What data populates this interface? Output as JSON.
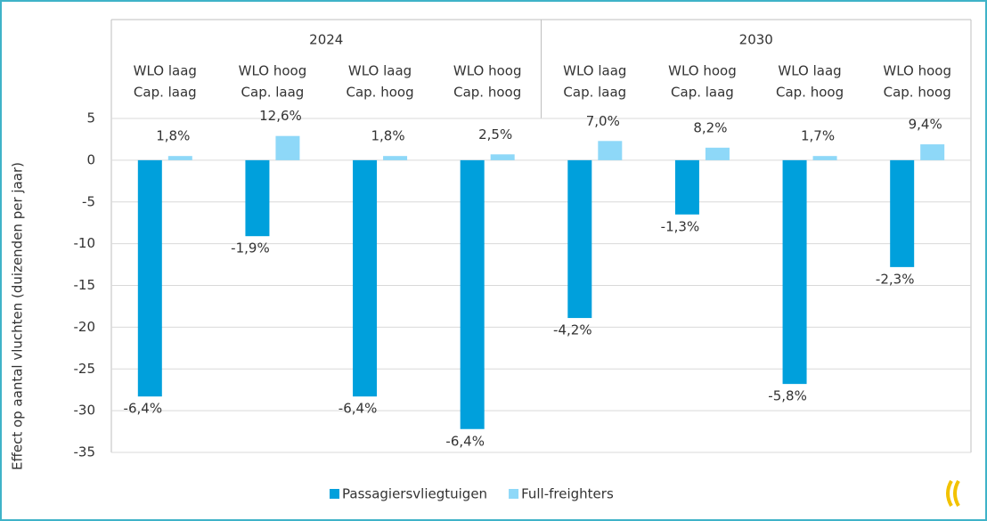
{
  "chart_data": {
    "type": "bar",
    "y_label": "Effect op aantal vluchten (duizenden per jaar)",
    "groups": [
      "2024",
      "2030"
    ],
    "categories": [
      [
        "WLO laag",
        "Cap. laag"
      ],
      [
        "WLO hoog",
        "Cap. laag"
      ],
      [
        "WLO laag",
        "Cap. hoog"
      ],
      [
        "WLO hoog",
        "Cap. hoog"
      ],
      [
        "WLO laag",
        "Cap. laag"
      ],
      [
        "WLO hoog",
        "Cap. laag"
      ],
      [
        "WLO laag",
        "Cap. hoog"
      ],
      [
        "WLO hoog",
        "Cap. hoog"
      ]
    ],
    "series": [
      {
        "name": "Passagiersvliegtuigen",
        "color": "#00a0dc",
        "values": [
          -28.3,
          -9.1,
          -28.3,
          -32.2,
          -18.9,
          -6.5,
          -26.8,
          -12.8
        ],
        "percent_labels": [
          "-6,4%",
          "-1,9%",
          "-6,4%",
          "-6,4%",
          "-4,2%",
          "-1,3%",
          "-5,8%",
          "-2,3%"
        ]
      },
      {
        "name": "Full-freighters",
        "color": "#8ed8f8",
        "values": [
          0.5,
          2.9,
          0.5,
          0.7,
          2.3,
          1.5,
          0.5,
          1.9
        ],
        "percent_labels": [
          "1,8%",
          "12,6%",
          "1,8%",
          "2,5%",
          "7,0%",
          "8,2%",
          "1,7%",
          "9,4%"
        ]
      }
    ],
    "ylim": [
      -35,
      5
    ],
    "yticks": [
      5,
      0,
      -5,
      -10,
      -15,
      -20,
      -25,
      -30,
      -35
    ],
    "grid": true
  }
}
